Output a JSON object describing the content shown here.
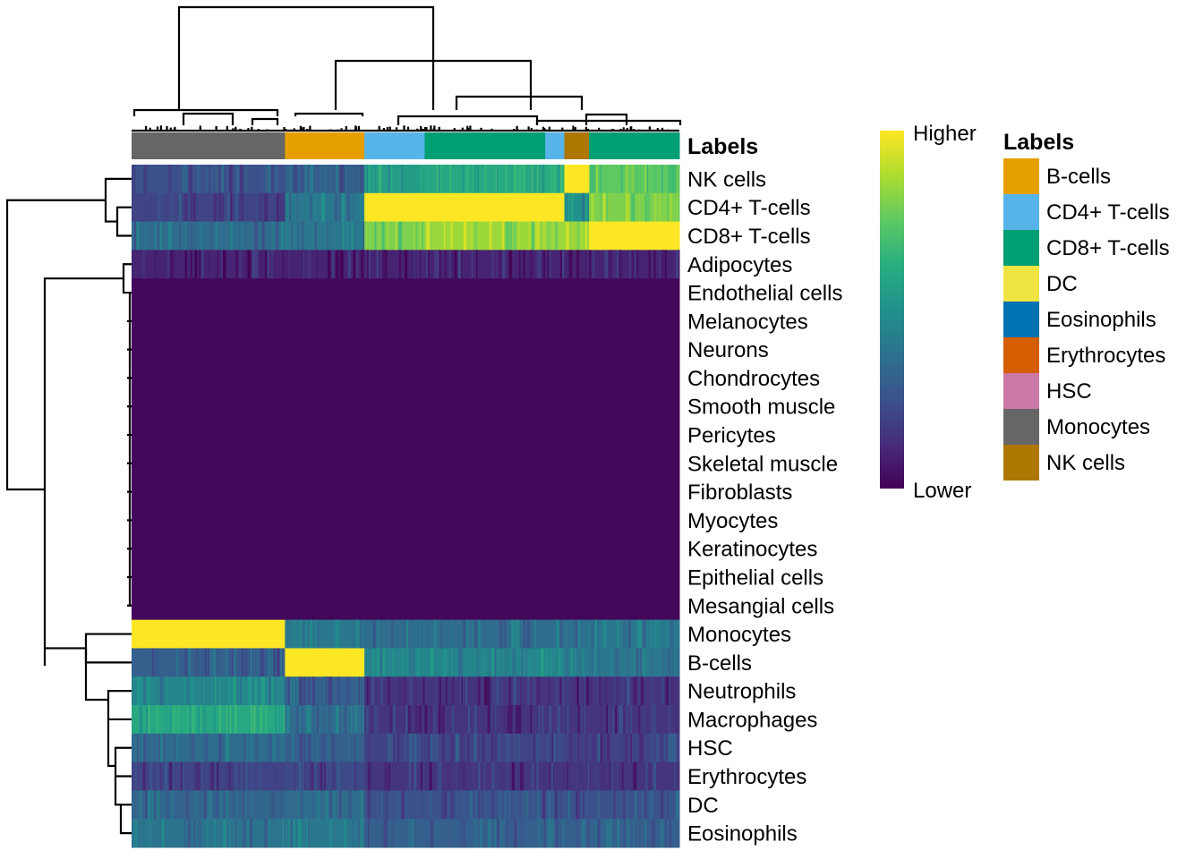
{
  "chart_data": {
    "type": "heatmap",
    "title": "",
    "rows": [
      "NK cells",
      "CD4+ T-cells",
      "CD8+ T-cells",
      "Adipocytes",
      "Endothelial cells",
      "Melanocytes",
      "Neurons",
      "Chondrocytes",
      "Smooth muscle",
      "Pericytes",
      "Skeletal muscle",
      "Fibroblasts",
      "Myocytes",
      "Keratinocytes",
      "Epithelial cells",
      "Mesangial cells",
      "Monocytes",
      "B-cells",
      "Neutrophils",
      "Macrophages",
      "HSC",
      "Erythrocytes",
      "DC",
      "Eosinophils"
    ],
    "column_groups": [
      {
        "label": "Monocytes",
        "fraction": 0.28
      },
      {
        "label": "B-cells",
        "fraction": 0.145
      },
      {
        "label": "CD4+ T-cells",
        "fraction": 0.11
      },
      {
        "label": "CD8+ T-cells",
        "fraction": 0.22
      },
      {
        "label": "CD4+ T-cells",
        "fraction": 0.035
      },
      {
        "label": "NK cells",
        "fraction": 0.045
      },
      {
        "label": "CD8+ T-cells",
        "fraction": 0.165
      }
    ],
    "score_matrix_by_group": [
      [
        0.25,
        0.3,
        0.55,
        0.6,
        0.62,
        1.0,
        0.75
      ],
      [
        0.2,
        0.4,
        1.0,
        1.0,
        1.0,
        0.5,
        0.8
      ],
      [
        0.35,
        0.4,
        0.8,
        0.85,
        0.85,
        0.85,
        1.0
      ],
      [
        0.1,
        0.1,
        0.1,
        0.1,
        0.1,
        0.1,
        0.1
      ],
      [
        0.02,
        0.02,
        0.02,
        0.02,
        0.02,
        0.02,
        0.02
      ],
      [
        0.02,
        0.02,
        0.02,
        0.02,
        0.02,
        0.02,
        0.02
      ],
      [
        0.02,
        0.02,
        0.02,
        0.02,
        0.02,
        0.02,
        0.02
      ],
      [
        0.02,
        0.02,
        0.02,
        0.02,
        0.02,
        0.02,
        0.02
      ],
      [
        0.02,
        0.02,
        0.02,
        0.02,
        0.02,
        0.02,
        0.02
      ],
      [
        0.02,
        0.02,
        0.02,
        0.02,
        0.02,
        0.02,
        0.02
      ],
      [
        0.02,
        0.02,
        0.02,
        0.02,
        0.02,
        0.02,
        0.02
      ],
      [
        0.02,
        0.02,
        0.02,
        0.02,
        0.02,
        0.02,
        0.02
      ],
      [
        0.02,
        0.02,
        0.02,
        0.02,
        0.02,
        0.02,
        0.02
      ],
      [
        0.02,
        0.02,
        0.02,
        0.02,
        0.02,
        0.02,
        0.02
      ],
      [
        0.02,
        0.02,
        0.02,
        0.02,
        0.02,
        0.02,
        0.02
      ],
      [
        0.02,
        0.02,
        0.02,
        0.02,
        0.02,
        0.02,
        0.02
      ],
      [
        1.0,
        0.4,
        0.35,
        0.35,
        0.35,
        0.38,
        0.4
      ],
      [
        0.3,
        1.0,
        0.45,
        0.45,
        0.45,
        0.4,
        0.4
      ],
      [
        0.45,
        0.3,
        0.15,
        0.15,
        0.15,
        0.15,
        0.15
      ],
      [
        0.6,
        0.35,
        0.15,
        0.15,
        0.15,
        0.15,
        0.15
      ],
      [
        0.35,
        0.3,
        0.2,
        0.2,
        0.2,
        0.2,
        0.2
      ],
      [
        0.2,
        0.22,
        0.15,
        0.15,
        0.15,
        0.15,
        0.15
      ],
      [
        0.32,
        0.35,
        0.25,
        0.25,
        0.25,
        0.25,
        0.25
      ],
      [
        0.38,
        0.4,
        0.3,
        0.3,
        0.3,
        0.3,
        0.3
      ]
    ],
    "annotation_title": "Labels",
    "colorbar": {
      "high_label": "Higher",
      "low_label": "Lower",
      "colormap": "viridis"
    },
    "legend": {
      "title": "Labels",
      "entries": [
        {
          "label": "B-cells",
          "color": "#E69F00"
        },
        {
          "label": "CD4+ T-cells",
          "color": "#56B4E9"
        },
        {
          "label": "CD8+ T-cells",
          "color": "#009E73"
        },
        {
          "label": "DC",
          "color": "#F0E442"
        },
        {
          "label": "Eosinophils",
          "color": "#0072B2"
        },
        {
          "label": "Erythrocytes",
          "color": "#D55E00"
        },
        {
          "label": "HSC",
          "color": "#CC79A7"
        },
        {
          "label": "Monocytes",
          "color": "#666666"
        },
        {
          "label": "NK cells",
          "color": "#AD7700"
        }
      ]
    }
  }
}
